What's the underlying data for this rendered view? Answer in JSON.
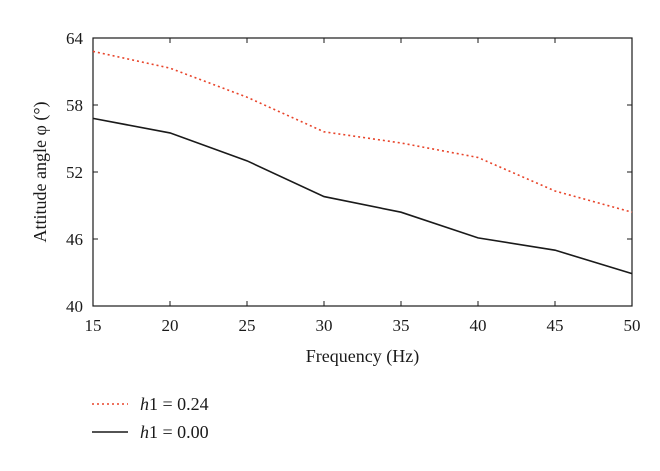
{
  "chart_data": {
    "type": "line",
    "title": "",
    "xlabel": "Frequency (Hz)",
    "ylabel": "Attitude angle φ (°)",
    "x": [
      15,
      20,
      25,
      30,
      35,
      40,
      45,
      50
    ],
    "xlim": [
      15,
      50
    ],
    "ylim": [
      40,
      64
    ],
    "xticks": [
      "15",
      "20",
      "25",
      "30",
      "35",
      "40",
      "45",
      "50"
    ],
    "yticks": [
      "40",
      "46",
      "52",
      "58",
      "64"
    ],
    "grid": false,
    "legend_position": "bottom-left",
    "series": [
      {
        "name": "h1 = 0.24",
        "name_italic": "h",
        "name_rest": "1 = 0.24",
        "style": "dotted",
        "color": "#e8442a",
        "values": [
          62.8,
          61.3,
          58.7,
          55.6,
          54.6,
          53.3,
          50.3,
          48.4
        ]
      },
      {
        "name": "h1 = 0.00",
        "name_italic": "h",
        "name_rest": "1 = 0.00",
        "style": "solid",
        "color": "#1a1a1a",
        "values": [
          56.8,
          55.5,
          53.0,
          49.8,
          48.4,
          46.1,
          45.0,
          42.9
        ]
      }
    ]
  }
}
